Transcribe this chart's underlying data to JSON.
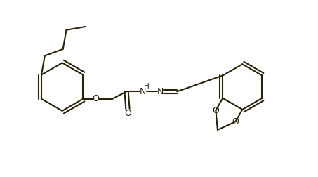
{
  "background_color": "#ffffff",
  "bond_color": "#2a2008",
  "line_width": 1.5,
  "figsize": [
    4.53,
    2.52
  ],
  "dpi": 100,
  "xlim": [
    0,
    9.5
  ],
  "ylim": [
    0,
    5.0
  ]
}
